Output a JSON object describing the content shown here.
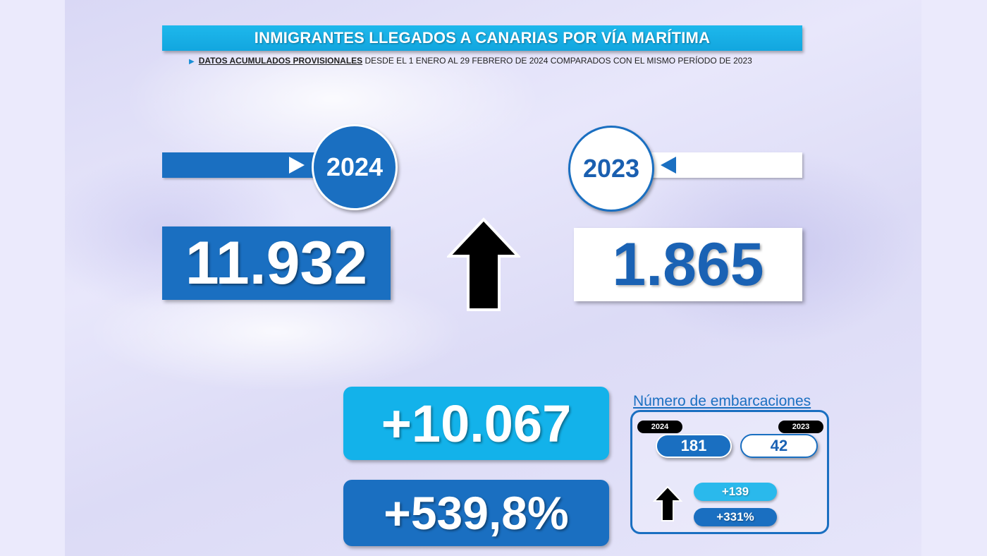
{
  "header": {
    "title": "INMIGRANTES LLEGADOS A CANARIAS POR VÍA MARÍTIMA",
    "subtitle_bold": "DATOS ACUMULADOS PROVISIONALES",
    "subtitle_rest": " DESDE EL 1 ENERO AL 29 FEBRERO DE 2024 COMPARADOS CON EL MISMO PERÍODO DE 2023"
  },
  "years": {
    "current": "2024",
    "previous": "2023"
  },
  "totals": {
    "current": "11.932",
    "previous": "1.865"
  },
  "difference": {
    "absolute": "+10.067",
    "percent": "+539,8%"
  },
  "boats": {
    "title": "Número de embarcaciones",
    "label_current": "2024",
    "label_previous": "2023",
    "value_current": "181",
    "value_previous": "42",
    "diff_absolute": "+139",
    "diff_percent": "+331%"
  },
  "colors": {
    "primary_blue": "#1a6fc1",
    "light_blue": "#13b2ea",
    "title_bar": "#1eb8ec"
  },
  "icons": {
    "trend": "arrow-up-icon"
  }
}
